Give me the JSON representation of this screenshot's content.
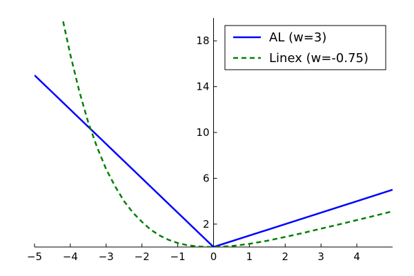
{
  "chart_data": {
    "type": "line",
    "title": "",
    "xlabel": "",
    "ylabel": "",
    "xlim": [
      -5,
      5
    ],
    "ylim": [
      0,
      20
    ],
    "grid": false,
    "legend_position": "top-right",
    "xticks": [
      -5,
      -4,
      -3,
      -2,
      -1,
      0,
      1,
      2,
      3,
      4
    ],
    "xtick_labels": [
      "−5",
      "−4",
      "−3",
      "−2",
      "−1",
      "0",
      "1",
      "2",
      "3",
      "4"
    ],
    "yticks": [
      2,
      6,
      10,
      14,
      18
    ],
    "ytick_labels": [
      "2",
      "6",
      "10",
      "14",
      "18"
    ],
    "series": [
      {
        "name": "AL (w=3)",
        "color": "#0000ff",
        "style": "solid",
        "x": [
          -5,
          0,
          5
        ],
        "y": [
          15,
          0,
          5
        ]
      },
      {
        "name": "Linex (w=-0.75)",
        "color": "#008000",
        "style": "dashed",
        "x": [
          -4.2,
          -4.0,
          -3.75,
          -3.5,
          -3.25,
          -3.0,
          -2.75,
          -2.5,
          -2.25,
          -2.0,
          -1.75,
          -1.5,
          -1.25,
          -1.0,
          -0.75,
          -0.5,
          -0.25,
          0.0,
          0.5,
          1.0,
          1.5,
          2.0,
          2.5,
          3.0,
          3.5,
          4.0,
          4.5,
          5.0
        ],
        "y": [
          19.7,
          16.8,
          13.6,
          10.9,
          8.7,
          6.8,
          5.3,
          4.0,
          3.0,
          2.2,
          1.5,
          1.0,
          0.62,
          0.35,
          0.17,
          0.07,
          0.02,
          0.0,
          0.08,
          0.28,
          0.55,
          0.88,
          1.23,
          1.6,
          1.97,
          2.35,
          2.73,
          3.12
        ]
      }
    ]
  }
}
